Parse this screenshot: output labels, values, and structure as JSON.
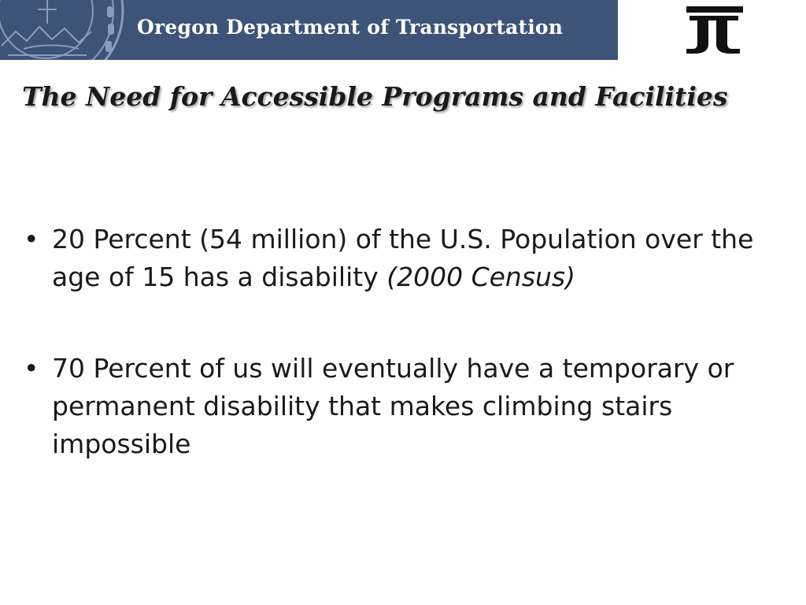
{
  "header": {
    "agency_name": "Oregon Department of Transportation",
    "colors": {
      "banner": "#3d5378",
      "seal": "#8a9cbc",
      "logo": "#111111"
    },
    "seal_icon": "oregon-state-seal-icon",
    "logo_icon": "odot-logo-icon"
  },
  "slide": {
    "title": "The Need for Accessible Programs and Facilities",
    "bullet_mark": "•",
    "bullets": [
      {
        "text": "20 Percent (54 million) of the U.S. Population over the age of 15 has a disability ",
        "citation": "(2000 Census)"
      },
      {
        "text": "70 Percent of us will eventually have a temporary or permanent disability that makes climbing stairs impossible",
        "citation": ""
      }
    ]
  }
}
